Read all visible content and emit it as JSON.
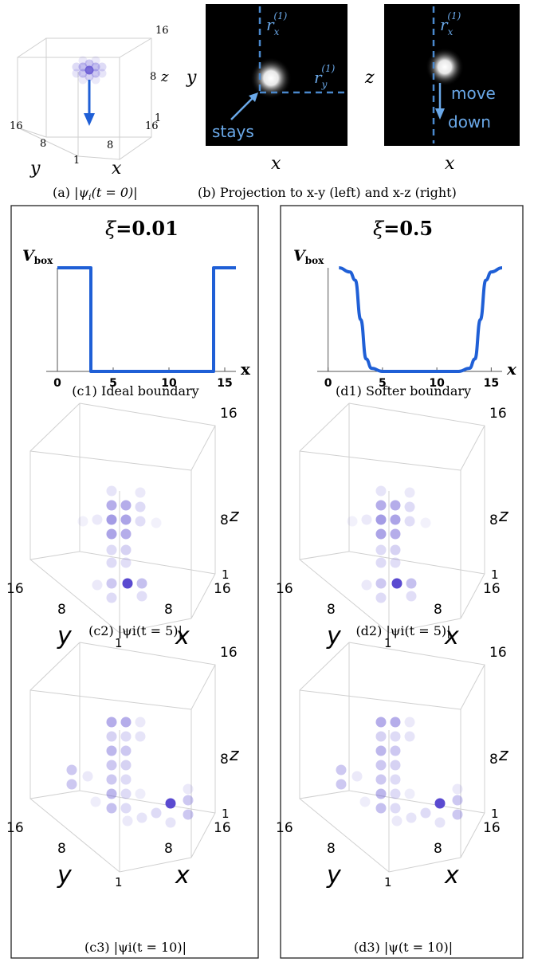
{
  "top": {
    "a_caption_prefix": "(a) |",
    "a_caption_psi": "ψ",
    "a_caption_sub": "i",
    "a_caption_suffix": "(t = 0)|",
    "b_caption": "(b) Projection to x-y (left) and x-z (right)",
    "cube_a": {
      "tick_16_z": "16",
      "tick_8_z": "8",
      "tick_1_z": "1",
      "tick_16_y": "16",
      "tick_8_y": "8",
      "tick_1": "1",
      "tick_8_x": "8",
      "tick_16_x": "16",
      "axis_y": "y",
      "axis_x": "x",
      "axis_z": "z"
    },
    "proj_left": {
      "axis_vertical": "y",
      "axis_horizontal": "x",
      "label_rx": "r",
      "label_rx_sub": "x",
      "label_rx_sup": "(1)",
      "label_ry": "r",
      "label_ry_sub": "y",
      "label_ry_sup": "(1)",
      "annotation": "stays"
    },
    "proj_right": {
      "axis_vertical": "z",
      "axis_horizontal": "x",
      "label_rx": "r",
      "label_rx_sub": "x",
      "label_rx_sup": "(1)",
      "annotation_line1": "move",
      "annotation_line2": "down"
    }
  },
  "panels": [
    {
      "xi_label": "ξ",
      "xi_value": "=0.01",
      "vbox_label": "V",
      "vbox_sub": "box",
      "x_ticks": [
        "0",
        "5",
        "10",
        "15"
      ],
      "x_axis": "x",
      "c1_caption": "(c1) Ideal boundary",
      "c2_caption": "(c2) |ψi(t = 5)|",
      "c3_caption": "(c3) |ψi(t = 10)|"
    },
    {
      "xi_label": "ξ",
      "xi_value": "=0.5",
      "vbox_label": "V",
      "vbox_sub": "box",
      "x_ticks": [
        "0",
        "5",
        "10",
        "15"
      ],
      "x_axis": "x",
      "c1_caption": "(d1) Softer boundary",
      "c2_caption": "(d2) |ψi(t = 5)|",
      "c3_caption": "(d3) |ψ(t = 10)|"
    }
  ],
  "cube_ticks": {
    "z16": "16",
    "z8": "8",
    "z1": "1",
    "y16": "16",
    "y8": "8",
    "origin": "1",
    "x8": "8",
    "x16": "16",
    "y_axis": "y",
    "x_axis": "x",
    "z_axis": "z"
  },
  "chart_data": [
    {
      "type": "line",
      "title": "ξ=0.01",
      "ylabel": "V_box",
      "xlabel": "x",
      "xlim": [
        -1,
        16
      ],
      "x": [
        0,
        1,
        2,
        3,
        3,
        14,
        14,
        15,
        16
      ],
      "values": [
        1,
        1,
        1,
        1,
        0,
        0,
        1,
        1,
        1
      ]
    },
    {
      "type": "line",
      "title": "ξ=0.5",
      "ylabel": "V_box",
      "xlabel": "x",
      "xlim": [
        -1,
        16
      ],
      "x": [
        1,
        2,
        2.5,
        3,
        3.5,
        4,
        5,
        12,
        13,
        13.5,
        14,
        14.5,
        15,
        16
      ],
      "values": [
        1,
        0.96,
        0.88,
        0.5,
        0.12,
        0.03,
        0,
        0,
        0.03,
        0.12,
        0.5,
        0.88,
        0.96,
        1
      ]
    }
  ],
  "colors": {
    "curve": "#1f5fd6",
    "annot": "#6aa8e8",
    "dot": "#5a4ad0",
    "frame": "#222222"
  }
}
